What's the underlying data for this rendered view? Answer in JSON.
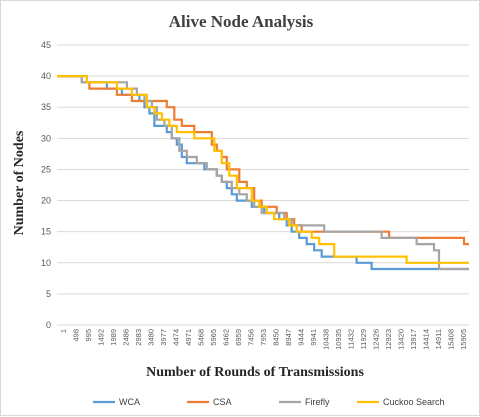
{
  "chart_data": {
    "type": "line",
    "title": "Alive  Node Analysis",
    "xlabel": "Number of Rounds of Transmissions",
    "ylabel": "Number of Nodes",
    "ylim": [
      0,
      45
    ],
    "yticks": [
      0,
      5,
      10,
      15,
      20,
      25,
      30,
      35,
      40,
      45
    ],
    "xlim": [
      1,
      16500
    ],
    "xticks": [
      "1",
      "498",
      "995",
      "1492",
      "1989",
      "2486",
      "2983",
      "3480",
      "3977",
      "4474",
      "4971",
      "5468",
      "5965",
      "6462",
      "6959",
      "7456",
      "7953",
      "8450",
      "8947",
      "9444",
      "9941",
      "10438",
      "10935",
      "11432",
      "11929",
      "12426",
      "12923",
      "13420",
      "13917",
      "14414",
      "14911",
      "15408",
      "15905"
    ],
    "grid": "horizontal",
    "legend_position": "bottom",
    "series": [
      {
        "name": "WCA",
        "color": "#5b9bd5",
        "x": [
          1,
          800,
          1000,
          1500,
          2000,
          2600,
          3000,
          3300,
          3500,
          3700,
          3900,
          4100,
          4400,
          4600,
          4800,
          5000,
          5200,
          5500,
          5900,
          6200,
          6400,
          6600,
          6800,
          7000,
          7200,
          7500,
          7800,
          8000,
          8300,
          8600,
          8900,
          9200,
          9400,
          9700,
          10000,
          10300,
          10600,
          11000,
          11500,
          12000,
          12300,
          12600,
          13000,
          14000,
          16500
        ],
        "y": [
          40,
          40,
          39,
          39,
          38,
          37,
          37,
          36,
          35,
          34,
          32,
          32,
          31,
          30,
          29,
          27,
          26,
          26,
          25,
          25,
          24,
          23,
          22,
          21,
          20,
          20,
          19,
          19,
          18,
          18,
          17,
          16,
          15,
          14,
          13,
          12,
          11,
          11,
          11,
          10,
          10,
          9,
          9,
          9,
          9
        ]
      },
      {
        "name": "CSA",
        "color": "#ed7d31",
        "x": [
          1,
          1000,
          1300,
          2000,
          2400,
          2800,
          3000,
          3400,
          3700,
          4400,
          4700,
          5000,
          5500,
          6000,
          6200,
          6400,
          6600,
          6800,
          7000,
          7300,
          7600,
          7900,
          8200,
          8500,
          8800,
          9200,
          9500,
          9800,
          10100,
          10400,
          10700,
          11000,
          12000,
          13000,
          13300,
          16000,
          16300,
          16500
        ],
        "y": [
          40,
          39,
          38,
          38,
          37,
          37,
          36,
          36,
          36,
          35,
          33,
          32,
          31,
          31,
          29,
          28,
          27,
          25,
          25,
          23,
          22,
          20,
          19,
          19,
          18,
          17,
          16,
          15,
          15,
          15,
          15,
          15,
          15,
          15,
          14,
          14,
          13,
          13
        ]
      },
      {
        "name": "Firefly",
        "color": "#a5a5a5",
        "x": [
          1,
          600,
          1000,
          1600,
          2300,
          2800,
          3200,
          3500,
          3800,
          4000,
          4300,
          4600,
          4900,
          5200,
          5600,
          6000,
          6200,
          6400,
          6600,
          6800,
          7000,
          7300,
          7600,
          7900,
          8200,
          8500,
          8800,
          9100,
          9400,
          9700,
          10000,
          10400,
          10700,
          11000,
          11500,
          12000,
          12500,
          13000,
          13500,
          14000,
          14400,
          14900,
          15100,
          15300,
          16500
        ],
        "y": [
          40,
          40,
          39,
          39,
          39,
          38,
          37,
          36,
          35,
          33,
          32,
          30,
          28,
          27,
          26,
          25,
          25,
          24,
          23,
          23,
          22,
          21,
          20,
          19,
          18,
          18,
          18,
          17,
          16,
          16,
          16,
          16,
          15,
          15,
          15,
          15,
          15,
          14,
          14,
          14,
          13,
          13,
          12,
          9,
          9
        ]
      },
      {
        "name": "Cuckoo Search",
        "color": "#ffc000",
        "x": [
          1,
          700,
          1200,
          1800,
          2400,
          3000,
          3600,
          3900,
          4200,
          4500,
          4800,
          5100,
          5500,
          6000,
          6300,
          6600,
          6900,
          7200,
          7500,
          7800,
          8100,
          8400,
          8700,
          9000,
          9300,
          9600,
          9900,
          10200,
          10500,
          10900,
          11100,
          11500,
          12000,
          12500,
          13000,
          13500,
          14000,
          14500,
          15000,
          15500,
          16500
        ],
        "y": [
          40,
          40,
          39,
          39,
          38,
          37,
          35,
          34,
          33,
          32,
          31,
          31,
          30,
          30,
          28,
          26,
          24,
          22,
          22,
          20,
          19,
          18,
          17,
          17,
          16,
          15,
          15,
          14,
          13,
          13,
          11,
          11,
          11,
          11,
          11,
          11,
          10,
          10,
          10,
          10,
          10
        ]
      }
    ]
  }
}
